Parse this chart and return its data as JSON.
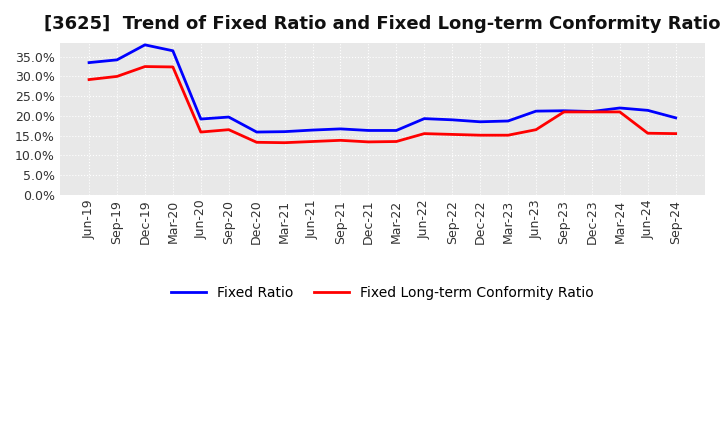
{
  "title": "[3625]  Trend of Fixed Ratio and Fixed Long-term Conformity Ratio",
  "x_labels": [
    "Jun-19",
    "Sep-19",
    "Dec-19",
    "Mar-20",
    "Jun-20",
    "Sep-20",
    "Dec-20",
    "Mar-21",
    "Jun-21",
    "Sep-21",
    "Dec-21",
    "Mar-22",
    "Jun-22",
    "Sep-22",
    "Dec-22",
    "Mar-23",
    "Jun-23",
    "Sep-23",
    "Dec-23",
    "Mar-24",
    "Jun-24",
    "Sep-24"
  ],
  "fixed_ratio": [
    33.5,
    34.2,
    38.0,
    36.5,
    19.2,
    19.7,
    15.9,
    16.0,
    16.4,
    16.7,
    16.3,
    16.3,
    19.3,
    19.0,
    18.5,
    18.7,
    21.2,
    21.3,
    21.1,
    22.0,
    21.4,
    19.5
  ],
  "fixed_lt_ratio": [
    29.2,
    30.0,
    32.5,
    32.4,
    15.9,
    16.5,
    13.3,
    13.2,
    13.5,
    13.8,
    13.4,
    13.5,
    15.5,
    15.3,
    15.1,
    15.1,
    16.5,
    21.0,
    21.0,
    21.0,
    15.6,
    15.5
  ],
  "ylim": [
    0.0,
    38.5
  ],
  "yticks": [
    0.0,
    5.0,
    10.0,
    15.0,
    20.0,
    25.0,
    30.0,
    35.0
  ],
  "line_color_fixed": "#0000ff",
  "line_color_lt": "#ff0000",
  "legend_fixed": "Fixed Ratio",
  "legend_lt": "Fixed Long-term Conformity Ratio",
  "background_color": "#ffffff",
  "plot_bg_color": "#e8e8e8",
  "grid_color": "#ffffff",
  "line_width": 2.0,
  "title_fontsize": 13,
  "tick_fontsize": 9,
  "legend_fontsize": 10
}
